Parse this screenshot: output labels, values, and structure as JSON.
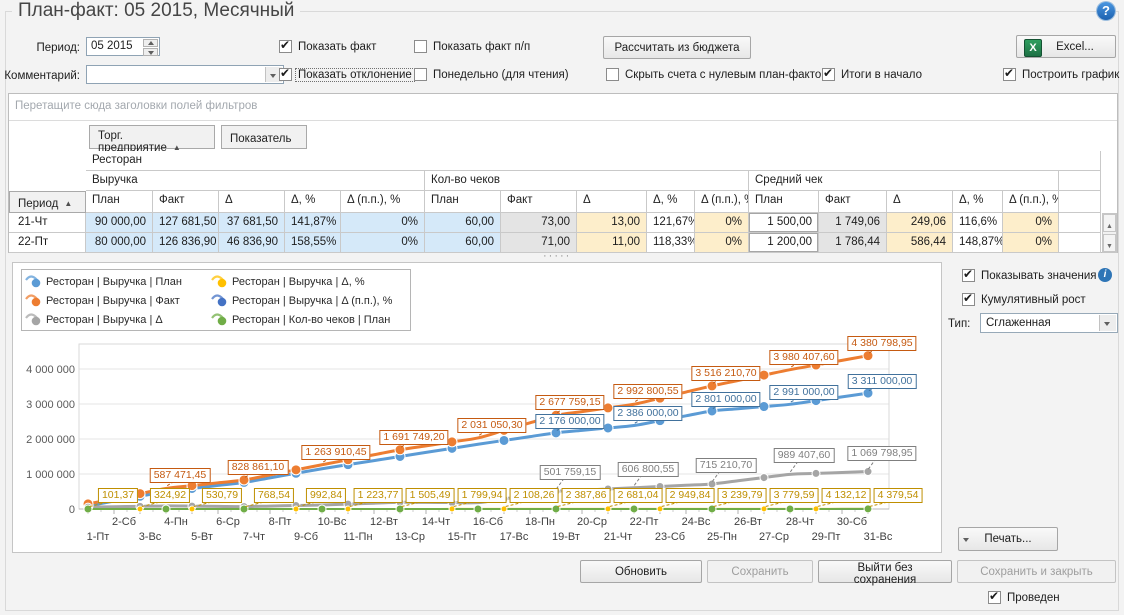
{
  "window": {
    "title": "План-факт: 05 2015, Месячный",
    "help_glyph": "?",
    "splitter_glyph": "·····",
    "posted": {
      "label": "Проведен",
      "checked": true
    }
  },
  "toolbar": {
    "period_label": "Период:",
    "period_value": "05 2015",
    "comment_label": "Комментарий:",
    "comment_value": "",
    "calc_button": "Рассчитать из бюджета",
    "excel_button": "Excel...",
    "show_fact": {
      "label": "Показать факт",
      "checked": true
    },
    "show_fact_pp": {
      "label": "Показать факт п/п",
      "checked": false
    },
    "show_deviation": {
      "label": "Показать отклонение",
      "checked": true
    },
    "weekly": {
      "label": "Понедельно (для чтения)",
      "checked": false
    },
    "hide_zero": {
      "label": "Скрыть счета с нулевым план-фактом",
      "checked": false
    },
    "totals_first": {
      "label": "Итоги в начало",
      "checked": true
    },
    "build_chart": {
      "label": "Построить график",
      "checked": true
    }
  },
  "pivot": {
    "drop_hint": "Перетащите сюда заголовки полей фильтров",
    "fields": [
      {
        "label": "Торг. предприятие",
        "arrow": "▲"
      },
      {
        "label": "Показатель",
        "arrow": ""
      }
    ],
    "period_header": {
      "label": "Период",
      "arrow": "▲"
    },
    "org_header": "Ресторан",
    "groups": [
      "Выручка",
      "Кол-во чеков",
      "Средний чек"
    ],
    "measures": [
      "План",
      "Факт",
      "Δ",
      "Δ, %",
      "Δ (п.п.), %"
    ],
    "rows": [
      {
        "period": "21-Чт",
        "cells": [
          "90 000,00",
          "127 681,50",
          "37 681,50",
          "141,87%",
          "0%",
          "60,00",
          "73,00",
          "13,00",
          "121,67%",
          "0%",
          "1 500,00",
          "1 749,06",
          "249,06",
          "116,6%",
          "0%"
        ]
      },
      {
        "period": "22-Пт",
        "cells": [
          "80 000,00",
          "126 836,90",
          "46 836,90",
          "158,55%",
          "0%",
          "60,00",
          "71,00",
          "11,00",
          "118,33%",
          "0%",
          "1 200,00",
          "1 786,44",
          "586,44",
          "148,87%",
          "0%"
        ]
      }
    ]
  },
  "chart_controls": {
    "show_values": {
      "label": "Показывать значения",
      "checked": true
    },
    "cumulative": {
      "label": "Кумулятивный рост",
      "checked": true
    },
    "type_label": "Тип:",
    "type_value": "Сглаженная",
    "print_label": "Печать..."
  },
  "chart_data": {
    "type": "line",
    "title": "",
    "grid": true,
    "legend_position": "top-left",
    "days": 31,
    "ylim": [
      0,
      4700000
    ],
    "yticks": [
      0,
      1000000,
      2000000,
      3000000,
      4000000
    ],
    "ytick_labels": [
      "0",
      "1 000 000",
      "2 000 000",
      "3 000 000",
      "4 000 000"
    ],
    "x_labels_odd": [
      "1-Пт",
      "3-Вс",
      "5-Вт",
      "7-Чт",
      "9-Сб",
      "11-Пн",
      "13-Ср",
      "15-Пт",
      "17-Вс",
      "19-Вт",
      "21-Чт",
      "23-Сб",
      "25-Пн",
      "27-Ср",
      "29-Пт",
      "31-Вс"
    ],
    "x_labels_even": [
      "2-Сб",
      "4-Пн",
      "6-Ср",
      "8-Пт",
      "10-Вс",
      "12-Вт",
      "14-Чт",
      "16-Сб",
      "18-Пн",
      "20-Ср",
      "22-Пт",
      "24-Вс",
      "26-Вт",
      "28-Чт",
      "30-Сб"
    ],
    "series": [
      {
        "name": "Ресторан | Выручка | План",
        "color": "#5b9bd5",
        "label_color": "#41719c",
        "width": 3,
        "marker": 5,
        "marker_step": 2,
        "label_dy": -19,
        "anchors": [
          [
            1,
            90000
          ],
          [
            4,
            500000
          ],
          [
            7,
            760000
          ],
          [
            10,
            1150000
          ],
          [
            13,
            1500000
          ],
          [
            16,
            1850000
          ],
          [
            19,
            2176000
          ],
          [
            22,
            2386000
          ],
          [
            25,
            2801000
          ],
          [
            28,
            2991000
          ],
          [
            31,
            3311000
          ]
        ],
        "labels": [
          [
            19,
            "2 176 000,00"
          ],
          [
            22,
            "2 386 000,00"
          ],
          [
            25,
            "2 801 000,00"
          ],
          [
            28,
            "2 991 000,00"
          ],
          [
            31,
            "3 311 000,00"
          ]
        ]
      },
      {
        "name": "Ресторан | Выручка | Факт",
        "color": "#ed7d31",
        "label_color": "#c55a11",
        "width": 3,
        "marker": 5,
        "marker_step": 2,
        "label_dy": -20,
        "anchors": [
          [
            1,
            145000
          ],
          [
            4,
            587471.45
          ],
          [
            7,
            828861.1
          ],
          [
            10,
            1263910.45
          ],
          [
            13,
            1691749.2
          ],
          [
            16,
            2031050.3
          ],
          [
            19,
            2677759.15
          ],
          [
            22,
            2992800.55
          ],
          [
            25,
            3516210.7
          ],
          [
            28,
            3980407.6
          ],
          [
            31,
            4380798.95
          ]
        ],
        "labels": [
          [
            4,
            "587 471,45"
          ],
          [
            7,
            "828 861,10"
          ],
          [
            10,
            "1 263 910,45"
          ],
          [
            13,
            "1 691 749,20"
          ],
          [
            16,
            "2 031 050,30"
          ],
          [
            19,
            "2 677 759,15"
          ],
          [
            22,
            "2 992 800,55"
          ],
          [
            25,
            "3 516 210,70"
          ],
          [
            28,
            "3 980 407,60"
          ],
          [
            31,
            "4 380 798,95"
          ]
        ]
      },
      {
        "name": "Ресторан | Выручка | Δ",
        "color": "#a5a5a5",
        "label_color": "#7f7f7f",
        "width": 3,
        "marker": 4,
        "marker_step": 2,
        "label_dy": -26,
        "anchors": [
          [
            1,
            55000
          ],
          [
            4,
            87471.45
          ],
          [
            7,
            68861.1
          ],
          [
            10,
            113910.45
          ],
          [
            13,
            191749.2
          ],
          [
            16,
            181050.3
          ],
          [
            19,
            501759.15
          ],
          [
            22,
            606800.55
          ],
          [
            25,
            715210.7
          ],
          [
            28,
            989407.6
          ],
          [
            31,
            1069798.95
          ]
        ],
        "labels": [
          [
            19,
            "501 759,15"
          ],
          [
            22,
            "606 800,55"
          ],
          [
            25,
            "715 210,70"
          ],
          [
            28,
            "989 407,60"
          ],
          [
            31,
            "1 069 798,95"
          ]
        ]
      },
      {
        "name": "Ресторан | Выручка | Δ, %",
        "color": "#ffc000",
        "label_color": "#bf8f00",
        "width": 2,
        "marker": 3,
        "marker_step": 2,
        "label_row_y": 225,
        "anchors": [
          [
            1,
            101.37
          ],
          [
            3,
            324.92
          ],
          [
            5,
            530.79
          ],
          [
            7,
            768.54
          ],
          [
            9,
            992.84
          ],
          [
            11,
            1223.77
          ],
          [
            13,
            1505.49
          ],
          [
            15,
            1799.94
          ],
          [
            17,
            2108.26
          ],
          [
            19,
            2387.86
          ],
          [
            21,
            2681.04
          ],
          [
            23,
            2949.84
          ],
          [
            25,
            3239.79
          ],
          [
            27,
            3779.59
          ],
          [
            29,
            4132.12
          ],
          [
            31,
            4379.54
          ]
        ],
        "labels": [
          [
            1,
            "101,37"
          ],
          [
            3,
            "324,92"
          ],
          [
            5,
            "530,79"
          ],
          [
            7,
            "768,54"
          ],
          [
            9,
            "992,84"
          ],
          [
            11,
            "1 223,77"
          ],
          [
            13,
            "1 505,49"
          ],
          [
            15,
            "1 799,94"
          ],
          [
            17,
            "2 108,26"
          ],
          [
            19,
            "2 387,86"
          ],
          [
            21,
            "2 681,04"
          ],
          [
            23,
            "2 949,84"
          ],
          [
            25,
            "3 239,79"
          ],
          [
            27,
            "3 779,59"
          ],
          [
            29,
            "4 132,12"
          ],
          [
            31,
            "4 379,54"
          ]
        ]
      },
      {
        "name": "Ресторан | Выручка | Δ (п.п.), %",
        "color": "#4472c4",
        "label_color": "#2e5596",
        "width": 2,
        "marker": 0,
        "marker_step": 2,
        "anchors": [
          [
            1,
            0
          ],
          [
            31,
            0
          ]
        ],
        "labels": []
      },
      {
        "name": "Ресторан | Кол-во чеков | План",
        "color": "#70ad47",
        "label_color": "#548235",
        "width": 2,
        "marker": 4,
        "marker_step": 3,
        "anchors": [
          [
            1,
            60
          ],
          [
            31,
            1860
          ]
        ],
        "labels": []
      }
    ]
  },
  "footer": {
    "refresh": "Обновить",
    "save": "Сохранить",
    "exit_without_saving": "Выйти без сохранения",
    "save_and_close": "Сохранить и закрыть"
  }
}
